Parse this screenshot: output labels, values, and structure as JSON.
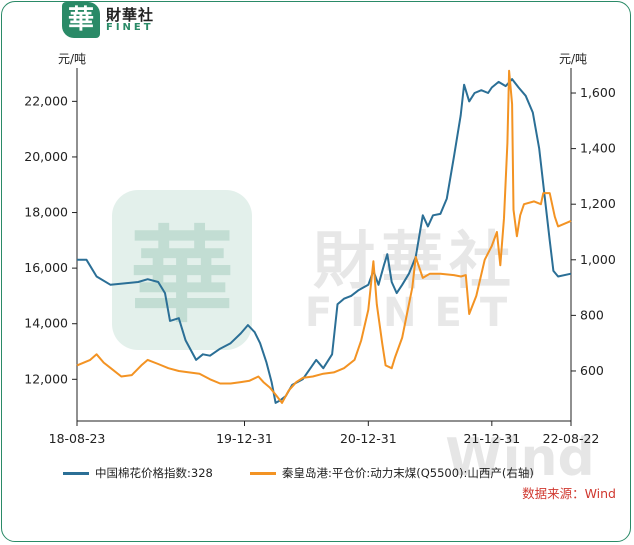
{
  "logo": {
    "mark": "華",
    "cn": "財華社",
    "en": "FINET"
  },
  "watermark": {
    "mark": "華",
    "cn": "財華社",
    "en": "FINET",
    "wind": "Wind"
  },
  "units": {
    "left": "元/吨",
    "right": "元/吨"
  },
  "source": "数据来源：Wind",
  "colors": {
    "blue": "#2b6f96",
    "orange": "#f39323",
    "brand": "#2a8a67"
  },
  "chart_data": {
    "type": "line",
    "x_ticks": [
      "18-08-23",
      "19-12-31",
      "20-12-31",
      "21-12-31",
      "22-08-22"
    ],
    "y_left": {
      "ticks": [
        "12,000",
        "14,000",
        "16,000",
        "18,000",
        "20,000",
        "22,000"
      ],
      "range": [
        10500,
        23200
      ]
    },
    "y_right": {
      "ticks": [
        "600",
        "800",
        "1,000",
        "1,200",
        "1,400",
        "1,600"
      ],
      "range": [
        420,
        1690
      ]
    },
    "series": [
      {
        "name": "中国棉花价格指数:328",
        "axis": "left",
        "color": "#2b6f96",
        "points": [
          [
            "2018-08-23",
            16300
          ],
          [
            "2018-09-20",
            16300
          ],
          [
            "2018-10-20",
            15700
          ],
          [
            "2018-11-30",
            15400
          ],
          [
            "2019-01-10",
            15450
          ],
          [
            "2019-02-20",
            15500
          ],
          [
            "2019-03-20",
            15600
          ],
          [
            "2019-04-20",
            15500
          ],
          [
            "2019-05-10",
            15100
          ],
          [
            "2019-05-25",
            14100
          ],
          [
            "2019-06-20",
            14200
          ],
          [
            "2019-07-10",
            13400
          ],
          [
            "2019-08-10",
            12700
          ],
          [
            "2019-08-30",
            12900
          ],
          [
            "2019-09-20",
            12850
          ],
          [
            "2019-10-20",
            13100
          ],
          [
            "2019-11-20",
            13300
          ],
          [
            "2019-12-20",
            13650
          ],
          [
            "2020-01-10",
            13950
          ],
          [
            "2020-01-30",
            13700
          ],
          [
            "2020-02-15",
            13300
          ],
          [
            "2020-03-05",
            12600
          ],
          [
            "2020-03-20",
            11900
          ],
          [
            "2020-04-01",
            11150
          ],
          [
            "2020-04-15",
            11250
          ],
          [
            "2020-05-01",
            11400
          ],
          [
            "2020-05-20",
            11800
          ],
          [
            "2020-06-20",
            12000
          ],
          [
            "2020-07-10",
            12350
          ],
          [
            "2020-07-30",
            12700
          ],
          [
            "2020-08-20",
            12400
          ],
          [
            "2020-09-15",
            12900
          ],
          [
            "2020-10-01",
            14700
          ],
          [
            "2020-10-20",
            14900
          ],
          [
            "2020-11-10",
            15000
          ],
          [
            "2020-12-01",
            15200
          ],
          [
            "2020-12-31",
            15400
          ],
          [
            "2021-01-15",
            15900
          ],
          [
            "2021-01-30",
            15400
          ],
          [
            "2021-02-15",
            16100
          ],
          [
            "2021-02-25",
            16500
          ],
          [
            "2021-03-10",
            15500
          ],
          [
            "2021-03-25",
            15100
          ],
          [
            "2021-04-10",
            15400
          ],
          [
            "2021-04-30",
            15800
          ],
          [
            "2021-05-20",
            16400
          ],
          [
            "2021-06-10",
            17900
          ],
          [
            "2021-06-25",
            17500
          ],
          [
            "2021-07-10",
            17900
          ],
          [
            "2021-08-01",
            17950
          ],
          [
            "2021-08-20",
            18500
          ],
          [
            "2021-09-10",
            20000
          ],
          [
            "2021-09-30",
            21500
          ],
          [
            "2021-10-10",
            22600
          ],
          [
            "2021-10-25",
            22000
          ],
          [
            "2021-11-10",
            22300
          ],
          [
            "2021-11-30",
            22400
          ],
          [
            "2021-12-20",
            22300
          ],
          [
            "2021-12-31",
            22500
          ],
          [
            "2022-01-20",
            22700
          ],
          [
            "2022-02-10",
            22550
          ],
          [
            "2022-03-01",
            22800
          ],
          [
            "2022-03-20",
            22500
          ],
          [
            "2022-04-10",
            22200
          ],
          [
            "2022-05-01",
            21600
          ],
          [
            "2022-05-20",
            20300
          ],
          [
            "2022-06-05",
            18600
          ],
          [
            "2022-06-20",
            17000
          ],
          [
            "2022-07-01",
            15900
          ],
          [
            "2022-07-15",
            15700
          ],
          [
            "2022-08-22",
            15800
          ]
        ]
      },
      {
        "name": "秦皇岛港:平仓价:动力末煤(Q5500):山西产(右轴)",
        "axis": "right",
        "color": "#f39323",
        "points": [
          [
            "2018-08-23",
            620
          ],
          [
            "2018-10-01",
            640
          ],
          [
            "2018-10-20",
            660
          ],
          [
            "2018-11-10",
            630
          ],
          [
            "2018-12-01",
            610
          ],
          [
            "2019-01-01",
            580
          ],
          [
            "2019-02-01",
            585
          ],
          [
            "2019-03-01",
            620
          ],
          [
            "2019-03-20",
            640
          ],
          [
            "2019-04-20",
            625
          ],
          [
            "2019-05-20",
            610
          ],
          [
            "2019-06-20",
            600
          ],
          [
            "2019-07-20",
            595
          ],
          [
            "2019-08-20",
            590
          ],
          [
            "2019-09-20",
            570
          ],
          [
            "2019-10-20",
            555
          ],
          [
            "2019-11-20",
            555
          ],
          [
            "2019-12-20",
            560
          ],
          [
            "2020-01-15",
            565
          ],
          [
            "2020-02-10",
            580
          ],
          [
            "2020-02-25",
            560
          ],
          [
            "2020-03-15",
            540
          ],
          [
            "2020-04-01",
            515
          ],
          [
            "2020-04-20",
            485
          ],
          [
            "2020-05-10",
            530
          ],
          [
            "2020-06-01",
            560
          ],
          [
            "2020-06-20",
            575
          ],
          [
            "2020-07-20",
            580
          ],
          [
            "2020-08-20",
            590
          ],
          [
            "2020-09-20",
            595
          ],
          [
            "2020-10-20",
            610
          ],
          [
            "2020-11-20",
            640
          ],
          [
            "2020-12-10",
            710
          ],
          [
            "2020-12-31",
            820
          ],
          [
            "2021-01-15",
            995
          ],
          [
            "2021-01-25",
            840
          ],
          [
            "2021-02-10",
            700
          ],
          [
            "2021-02-20",
            620
          ],
          [
            "2021-03-10",
            610
          ],
          [
            "2021-03-20",
            650
          ],
          [
            "2021-04-10",
            720
          ],
          [
            "2021-05-10",
            900
          ],
          [
            "2021-05-20",
            1010
          ],
          [
            "2021-06-10",
            935
          ],
          [
            "2021-07-01",
            950
          ],
          [
            "2021-08-01",
            950
          ],
          [
            "2021-09-10",
            945
          ],
          [
            "2021-10-01",
            940
          ],
          [
            "2021-10-15",
            945
          ],
          [
            "2021-10-25",
            805
          ],
          [
            "2021-11-15",
            870
          ],
          [
            "2021-12-10",
            1000
          ],
          [
            "2021-12-31",
            1050
          ],
          [
            "2022-01-15",
            1100
          ],
          [
            "2022-01-25",
            980
          ],
          [
            "2022-02-05",
            1150
          ],
          [
            "2022-02-15",
            1420
          ],
          [
            "2022-02-20",
            1680
          ],
          [
            "2022-03-01",
            1560
          ],
          [
            "2022-03-05",
            1180
          ],
          [
            "2022-03-15",
            1085
          ],
          [
            "2022-03-25",
            1160
          ],
          [
            "2022-04-05",
            1200
          ],
          [
            "2022-05-05",
            1210
          ],
          [
            "2022-05-25",
            1200
          ],
          [
            "2022-06-01",
            1240
          ],
          [
            "2022-06-20",
            1240
          ],
          [
            "2022-07-05",
            1155
          ],
          [
            "2022-07-15",
            1120
          ],
          [
            "2022-08-22",
            1140
          ]
        ]
      }
    ]
  }
}
